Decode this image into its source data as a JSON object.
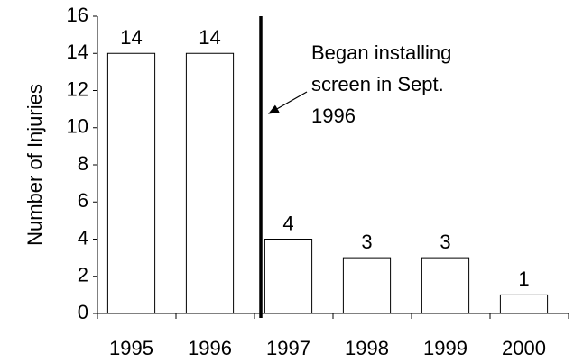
{
  "chart_data": {
    "type": "bar",
    "y_label": "Number of Injuries",
    "categories": [
      "1995",
      "1996",
      "1997",
      "1998",
      "1999",
      "2000"
    ],
    "values": [
      14,
      14,
      4,
      3,
      3,
      1
    ],
    "color": "#ffffff",
    "ylim": [
      0,
      16
    ],
    "yticks": [
      0,
      2,
      4,
      6,
      8,
      10,
      12,
      14,
      16
    ],
    "annotation": [
      "Began installing",
      "screen in Sept.",
      "1996"
    ]
  }
}
